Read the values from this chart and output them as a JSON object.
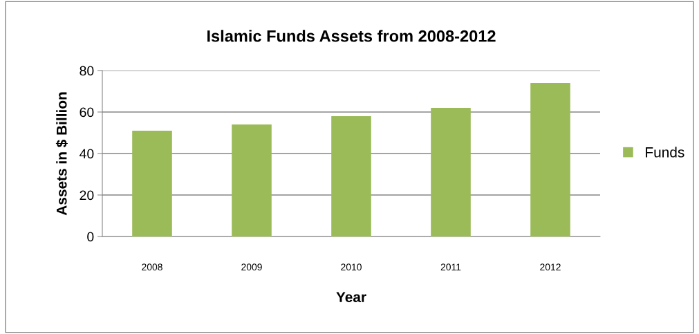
{
  "chart_data": {
    "type": "bar",
    "title": "Islamic Funds Assets from 2008-2012",
    "xlabel": "Year",
    "ylabel": "Assets in $ Billion",
    "categories": [
      "2008",
      "2009",
      "2010",
      "2011",
      "2012"
    ],
    "series": [
      {
        "name": "Funds",
        "color": "#9bbb59",
        "values": [
          51,
          54,
          58,
          62,
          74
        ]
      }
    ],
    "ylim": [
      0,
      80
    ],
    "yticks": [
      0,
      20,
      40,
      60,
      80
    ],
    "grid": "y",
    "legend": "right"
  }
}
